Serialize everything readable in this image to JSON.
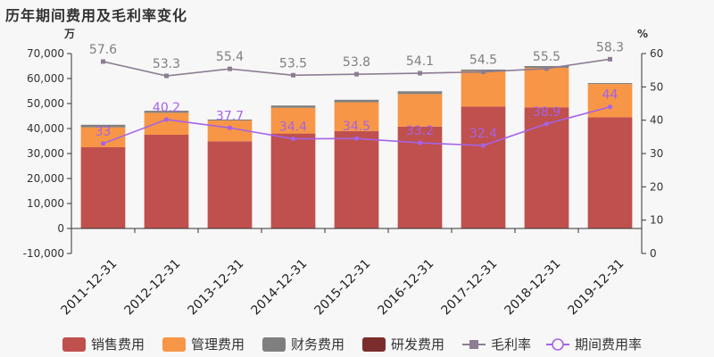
{
  "chart_data": {
    "type": "bar",
    "title": "历年期间费用及毛利率变化",
    "left_unit": "万",
    "right_unit": "%",
    "categories": [
      "2011-12-31",
      "2012-12-31",
      "2013-12-31",
      "2014-12-31",
      "2015-12-31",
      "2016-12-31",
      "2017-12-31",
      "2018-12-31",
      "2019-12-31"
    ],
    "series": [
      {
        "name": "销售费用",
        "color": "#c0504d",
        "values": [
          32500,
          37500,
          34900,
          38000,
          39000,
          40800,
          48800,
          48500,
          44500
        ]
      },
      {
        "name": "管理费用",
        "color": "#f79646",
        "values": [
          8000,
          8800,
          8300,
          10300,
          11500,
          13000,
          14200,
          15800,
          13300
        ]
      },
      {
        "name": "财务费用",
        "color": "#7f7f7f",
        "values": [
          1000,
          800,
          400,
          900,
          1000,
          1100,
          600,
          700,
          400
        ]
      },
      {
        "name": "研发费用",
        "color": "#7b2d2d",
        "values": [
          0,
          0,
          0,
          0,
          0,
          0,
          0,
          0,
          0
        ]
      }
    ],
    "lines": [
      {
        "name": "毛利率",
        "color": "#8c7d93",
        "values": [
          57.6,
          53.3,
          55.4,
          53.5,
          53.8,
          54.1,
          54.5,
          55.5,
          58.3
        ],
        "labels": [
          "57.6",
          "53.3",
          "55.4",
          "53.5",
          "53.8",
          "54.1",
          "54.5",
          "55.5",
          "58.3"
        ]
      },
      {
        "name": "期间费用率",
        "color": "#a463e6",
        "values": [
          33,
          40.2,
          37.7,
          34.4,
          34.5,
          33.2,
          32.4,
          38.9,
          44
        ],
        "labels": [
          "33",
          "40.2",
          "37.7",
          "34.4",
          "34.5",
          "33.2",
          "32.4",
          "38.9",
          "44"
        ]
      }
    ],
    "y_left": {
      "min": -10000,
      "max": 70000,
      "step": 10000,
      "ticks": [
        "-10,000",
        "0",
        "10,000",
        "20,000",
        "30,000",
        "40,000",
        "50,000",
        "60,000",
        "70,000"
      ]
    },
    "y_right": {
      "min": 0,
      "max": 60,
      "step": 10,
      "ticks": [
        "0",
        "10",
        "20",
        "30",
        "40",
        "50",
        "60"
      ]
    },
    "legend_position": "bottom",
    "grid": false
  }
}
